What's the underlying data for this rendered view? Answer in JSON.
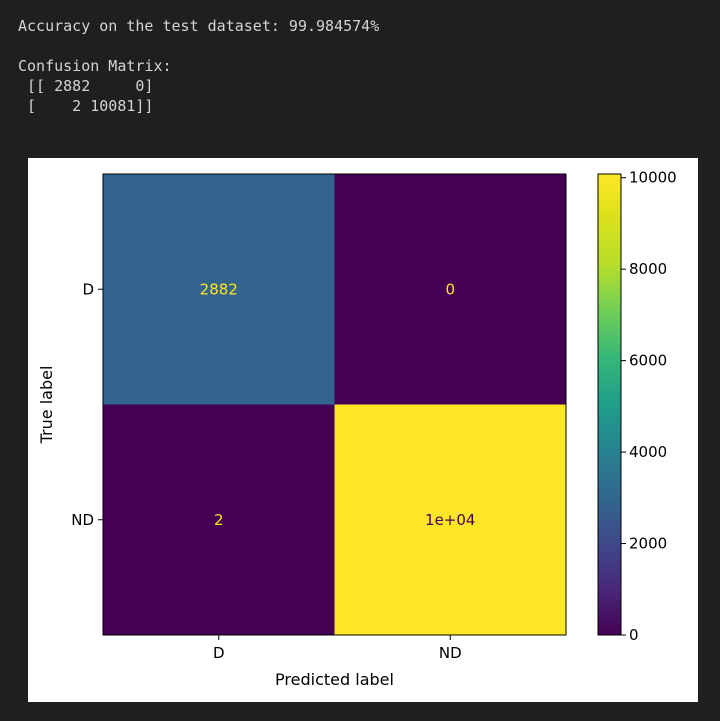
{
  "output": {
    "lines": [
      "Accuracy on the test dataset: 99.984574%",
      "",
      "Confusion Matrix:",
      " [[ 2882     0]",
      " [    2 10081]]"
    ]
  },
  "chart_data": {
    "type": "heatmap",
    "title": "",
    "xlabel": "Predicted label",
    "ylabel": "True label",
    "x_categories": [
      "D",
      "ND"
    ],
    "y_categories": [
      "D",
      "ND"
    ],
    "values": [
      [
        2882,
        0
      ],
      [
        2,
        10081
      ]
    ],
    "cell_labels": [
      [
        "2882",
        "0"
      ],
      [
        "2",
        "1e+04"
      ]
    ],
    "colormap": "viridis",
    "colorbar": {
      "min": 0,
      "max": 10081,
      "ticks": [
        0,
        2000,
        4000,
        6000,
        8000,
        10000
      ],
      "tick_labels": [
        "0",
        "2000",
        "4000",
        "6000",
        "8000",
        "10000"
      ]
    },
    "text_colors": {
      "light": "#fde725",
      "dark": "#440154"
    },
    "grid": false
  }
}
